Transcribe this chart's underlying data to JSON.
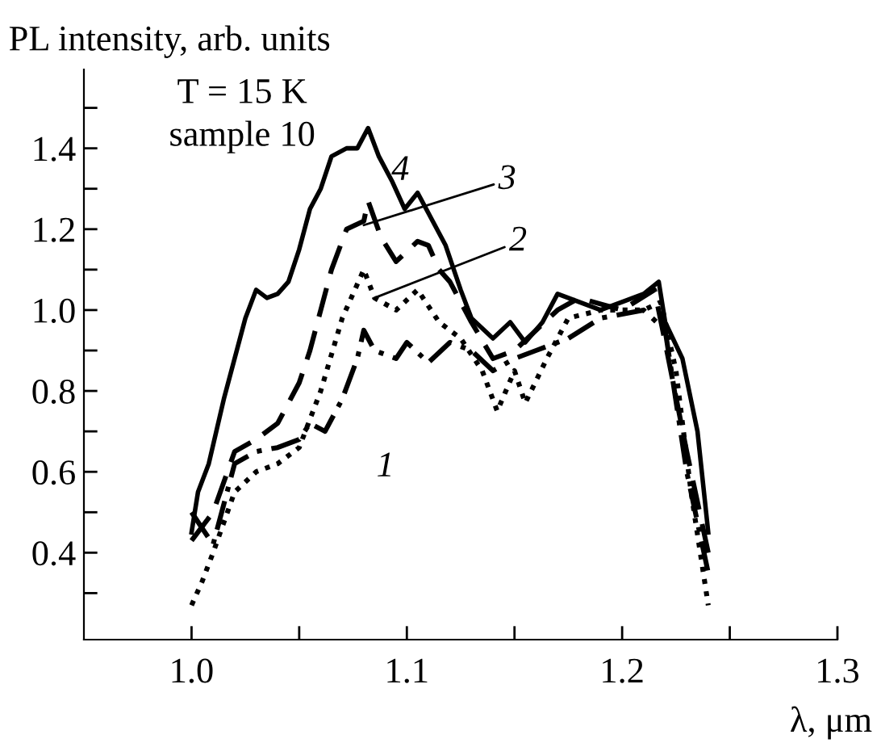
{
  "chart_data": {
    "type": "line",
    "ylabel": "PL intensity, arb. units",
    "xlabel": "λ, μm",
    "annotations": [
      "T = 15 K",
      "sample 10",
      "4",
      "1",
      {
        "text": "3",
        "x": 1.08,
        "y": 1.21
      },
      {
        "text": "2",
        "x": 1.085,
        "y": 1.03
      }
    ],
    "xlim": [
      0.95,
      1.3
    ],
    "ylim": [
      0.185,
      1.595
    ],
    "xticks": [
      {
        "value": 1.0,
        "label": "1.0"
      },
      {
        "value": 1.05,
        "label": null
      },
      1.1,
      {
        "value": 1.15,
        "label": null
      },
      1.2,
      {
        "value": 1.25,
        "label": null
      },
      1.3
    ],
    "yticks": [
      {
        "value": 0.3,
        "label": null
      },
      0.4,
      {
        "value": 0.5,
        "label": null
      },
      0.6,
      {
        "value": 0.7,
        "label": null
      },
      0.8,
      {
        "value": 0.9,
        "label": null
      },
      {
        "value": 1.0,
        "label": "1.0"
      },
      {
        "value": 1.1,
        "label": null
      },
      1.2,
      {
        "value": 1.3,
        "label": null
      },
      1.4,
      {
        "value": 1.5,
        "label": null
      }
    ],
    "grid": false,
    "series": [
      {
        "color": "#000000",
        "line_style": "dashdot",
        "x": [
          1.0,
          1.01,
          1.02,
          1.03,
          1.04,
          1.05,
          1.055,
          1.062,
          1.07,
          1.077,
          1.08,
          1.085,
          1.095,
          1.1,
          1.11,
          1.12,
          1.13,
          1.14,
          1.15,
          1.16,
          1.175,
          1.19,
          1.21,
          1.22,
          1.23,
          1.24
        ],
        "values": [
          0.5,
          0.42,
          0.62,
          0.65,
          0.66,
          0.68,
          0.72,
          0.7,
          0.78,
          0.88,
          0.95,
          0.9,
          0.88,
          0.92,
          0.87,
          0.92,
          0.9,
          0.85,
          0.88,
          0.9,
          0.93,
          0.98,
          1.0,
          0.95,
          0.6,
          0.35
        ]
      },
      {
        "color": "#000000",
        "line_style": "dotted",
        "x": [
          1.0,
          1.005,
          1.01,
          1.02,
          1.03,
          1.04,
          1.05,
          1.06,
          1.07,
          1.08,
          1.085,
          1.095,
          1.105,
          1.115,
          1.125,
          1.135,
          1.142,
          1.15,
          1.155,
          1.165,
          1.175,
          1.19,
          1.21,
          1.218,
          1.225,
          1.232,
          1.24
        ],
        "values": [
          0.27,
          0.33,
          0.4,
          0.55,
          0.6,
          0.62,
          0.66,
          0.8,
          0.98,
          1.1,
          1.03,
          1.0,
          1.05,
          0.97,
          0.93,
          0.85,
          0.75,
          0.85,
          0.77,
          0.88,
          0.98,
          1.0,
          1.0,
          1.02,
          0.85,
          0.55,
          0.27
        ]
      },
      {
        "color": "#000000",
        "line_style": "dashed",
        "x": [
          1.0,
          1.01,
          1.02,
          1.03,
          1.04,
          1.05,
          1.055,
          1.06,
          1.065,
          1.072,
          1.08,
          1.082,
          1.088,
          1.095,
          1.105,
          1.11,
          1.115,
          1.12,
          1.13,
          1.14,
          1.15,
          1.16,
          1.17,
          1.18,
          1.2,
          1.215,
          1.22,
          1.23,
          1.24
        ],
        "values": [
          0.43,
          0.5,
          0.65,
          0.68,
          0.72,
          0.82,
          0.9,
          1.0,
          1.1,
          1.2,
          1.22,
          1.27,
          1.18,
          1.12,
          1.17,
          1.16,
          1.1,
          1.07,
          0.97,
          0.88,
          0.9,
          0.95,
          1.0,
          1.03,
          1.0,
          1.05,
          0.92,
          0.65,
          0.4
        ]
      },
      {
        "color": "#000000",
        "line_style": "solid",
        "x": [
          1.0,
          1.003,
          1.008,
          1.015,
          1.02,
          1.025,
          1.03,
          1.035,
          1.04,
          1.045,
          1.05,
          1.055,
          1.06,
          1.065,
          1.072,
          1.077,
          1.082,
          1.087,
          1.093,
          1.099,
          1.105,
          1.112,
          1.118,
          1.125,
          1.13,
          1.14,
          1.148,
          1.155,
          1.163,
          1.17,
          1.18,
          1.19,
          1.2,
          1.21,
          1.217,
          1.22,
          1.228,
          1.235,
          1.24
        ],
        "values": [
          0.45,
          0.55,
          0.62,
          0.78,
          0.88,
          0.98,
          1.05,
          1.03,
          1.04,
          1.07,
          1.15,
          1.25,
          1.3,
          1.38,
          1.4,
          1.4,
          1.45,
          1.38,
          1.32,
          1.25,
          1.29,
          1.22,
          1.16,
          1.05,
          0.98,
          0.93,
          0.97,
          0.92,
          0.97,
          1.04,
          1.02,
          1.0,
          1.02,
          1.04,
          1.07,
          0.97,
          0.88,
          0.7,
          0.45
        ]
      }
    ]
  }
}
